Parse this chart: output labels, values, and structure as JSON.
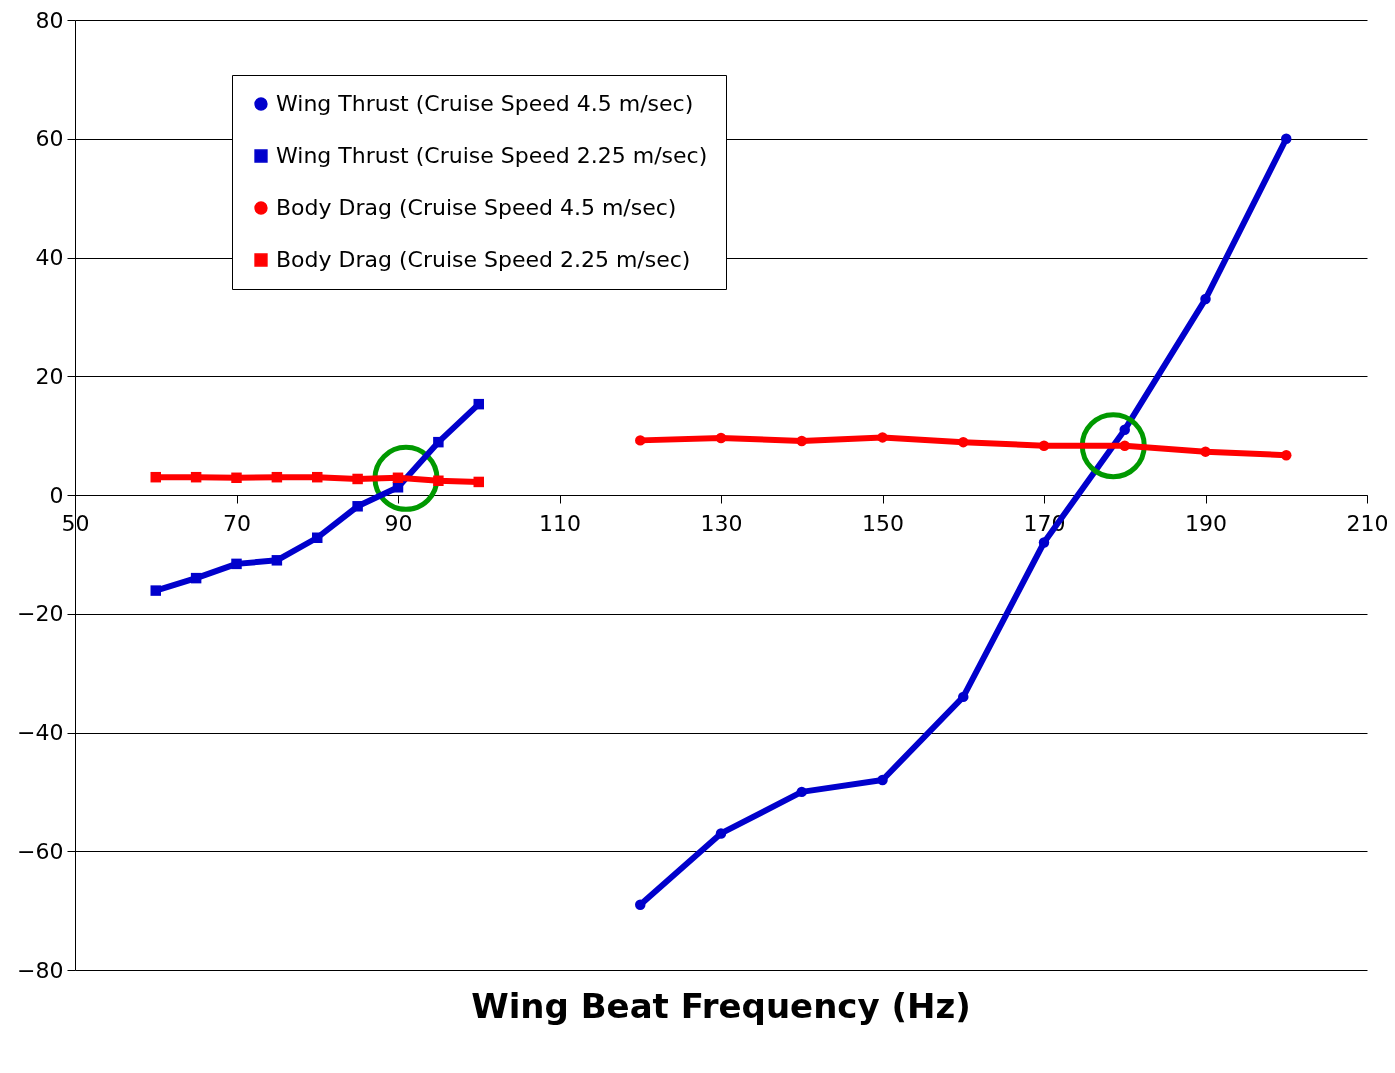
{
  "chart_data": {
    "type": "line",
    "xlabel": "Wing Beat Frequency (Hz)",
    "xlim": [
      50,
      210
    ],
    "xticks": [
      50,
      70,
      90,
      110,
      130,
      150,
      170,
      190,
      210
    ],
    "ylim": [
      -80,
      80
    ],
    "yticks": [
      -80,
      -60,
      -40,
      -20,
      0,
      20,
      40,
      60,
      80
    ],
    "grid": "y",
    "legend": "top left",
    "series": [
      {
        "name": "Wing Thrust (Cruise Speed 4.5 m/sec)",
        "color": "#0000cc",
        "marker": "circle",
        "x": [
          120,
          130,
          140,
          150,
          160,
          170,
          180,
          190,
          200
        ],
        "values": [
          -69,
          -57,
          -50,
          -48,
          -34,
          -8,
          11,
          33,
          60
        ]
      },
      {
        "name": "Wing Thrust (Cruise Speed 2.25 m/sec)",
        "color": "#0000cc",
        "marker": "square",
        "x": [
          60,
          65,
          70,
          75,
          80,
          85,
          90,
          95,
          100
        ],
        "values": [
          -16.1,
          -14,
          -11.6,
          -11,
          -7.2,
          -1.9,
          1.3,
          8.9,
          15.3
        ]
      },
      {
        "name": "Body Drag (Cruise Speed 4.5 m/sec)",
        "color": "#ff0000",
        "marker": "circle",
        "x": [
          120,
          130,
          140,
          150,
          160,
          170,
          180,
          190,
          200
        ],
        "values": [
          9.2,
          9.6,
          9.1,
          9.7,
          8.9,
          8.3,
          8.3,
          7.3,
          6.7
        ]
      },
      {
        "name": "Body Drag (Cruise Speed 2.25 m/sec)",
        "color": "#ff0000",
        "marker": "square",
        "x": [
          60,
          65,
          70,
          75,
          80,
          85,
          90,
          95,
          100
        ],
        "values": [
          3,
          3,
          2.9,
          3,
          3,
          2.7,
          2.9,
          2.4,
          2.2
        ]
      }
    ]
  }
}
